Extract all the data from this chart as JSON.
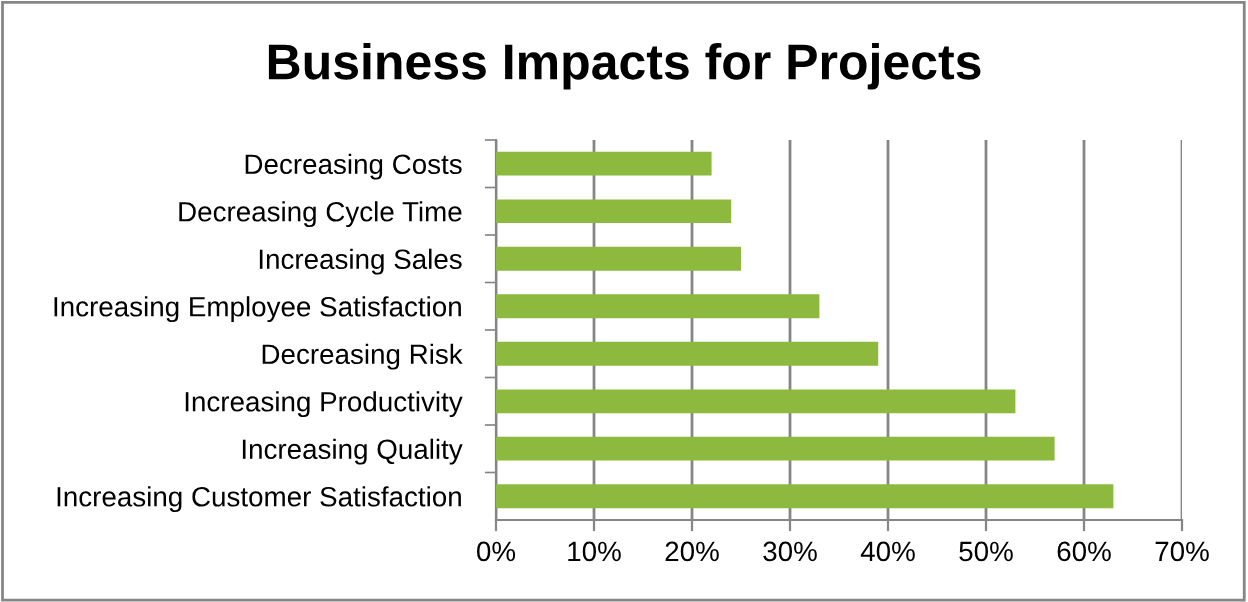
{
  "chart_data": {
    "type": "bar",
    "orientation": "horizontal",
    "title": "Business Impacts for Projects",
    "categories": [
      "Decreasing Costs",
      "Decreasing Cycle Time",
      "Increasing Sales",
      "Increasing Employee Satisfaction",
      "Decreasing Risk",
      "Increasing Productivity",
      "Increasing Quality",
      "Increasing Customer Satisfaction"
    ],
    "values": [
      22,
      24,
      25,
      33,
      39,
      53,
      57,
      63
    ],
    "color": "#8db93e",
    "xlim": [
      0,
      70
    ],
    "xticks": [
      {
        "value": 0,
        "label": "0%"
      },
      {
        "value": 10,
        "label": "10%"
      },
      {
        "value": 20,
        "label": "20%"
      },
      {
        "value": 30,
        "label": "30%"
      },
      {
        "value": 40,
        "label": "40%"
      },
      {
        "value": 50,
        "label": "50%"
      },
      {
        "value": 60,
        "label": "60%"
      },
      {
        "value": 70,
        "label": "70%"
      }
    ],
    "grid": "x"
  }
}
